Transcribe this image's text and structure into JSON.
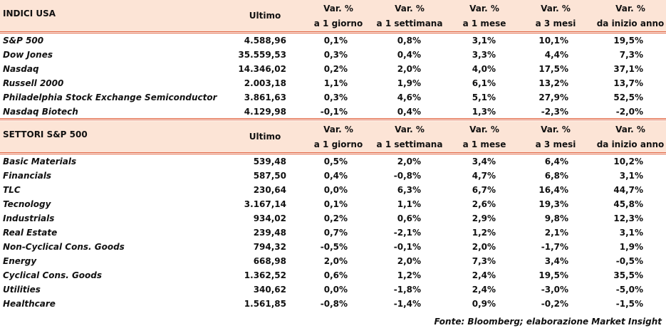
{
  "sections": [
    {
      "title": "INDICI USA",
      "columns": [
        [
          "Ultimo"
        ],
        [
          "Var. %",
          "a 1 giorno"
        ],
        [
          "Var. %",
          "a 1 settimana"
        ],
        [
          "Var. %",
          "a 1 mese"
        ],
        [
          "Var. %",
          "a 3 mesi"
        ],
        [
          "Var. %",
          "da inizio anno"
        ]
      ],
      "rows": [
        [
          "S&P 500",
          "4.588,96",
          "0,1%",
          "0,8%",
          "3,1%",
          "10,1%",
          "19,5%"
        ],
        [
          "Dow Jones",
          "35.559,53",
          "0,3%",
          "0,4%",
          "3,3%",
          "4,4%",
          "7,3%"
        ],
        [
          "Nasdaq",
          "14.346,02",
          "0,2%",
          "2,0%",
          "4,0%",
          "17,5%",
          "37,1%"
        ],
        [
          "Russell 2000",
          "2.003,18",
          "1,1%",
          "1,9%",
          "6,1%",
          "13,2%",
          "13,7%"
        ],
        [
          "Philadelphia Stock Exchange Semiconductor",
          "3.861,63",
          "0,3%",
          "4,6%",
          "5,1%",
          "27,9%",
          "52,5%"
        ],
        [
          "Nasdaq Biotech",
          "4.129,98",
          "-0,1%",
          "0,4%",
          "1,3%",
          "-2,3%",
          "-2,0%"
        ]
      ]
    },
    {
      "title": "SETTORI S&P 500",
      "columns": [
        [
          "Ultimo"
        ],
        [
          "Var. %",
          "a 1 giorno"
        ],
        [
          "Var. %",
          "a 1 settimana"
        ],
        [
          "Var. %",
          "a 1 mese"
        ],
        [
          "Var. %",
          "a 3 mesi"
        ],
        [
          "Var. %",
          "da inizio anno"
        ]
      ],
      "rows": [
        [
          "Basic Materials",
          "539,48",
          "0,5%",
          "2,0%",
          "3,4%",
          "6,4%",
          "10,2%"
        ],
        [
          "Financials",
          "587,50",
          "0,4%",
          "-0,8%",
          "4,7%",
          "6,8%",
          "3,1%"
        ],
        [
          "TLC",
          "230,64",
          "0,0%",
          "6,3%",
          "6,7%",
          "16,4%",
          "44,7%"
        ],
        [
          "Tecnology",
          "3.167,14",
          "0,1%",
          "1,1%",
          "2,6%",
          "19,3%",
          "45,8%"
        ],
        [
          "Industrials",
          "934,02",
          "0,2%",
          "0,6%",
          "2,9%",
          "9,8%",
          "12,3%"
        ],
        [
          "Real Estate",
          "239,48",
          "0,7%",
          "-2,1%",
          "1,2%",
          "2,1%",
          "3,1%"
        ],
        [
          "Non-Cyclical Cons. Goods",
          "794,32",
          "-0,5%",
          "-0,1%",
          "2,0%",
          "-1,7%",
          "1,9%"
        ],
        [
          "Energy",
          "668,98",
          "2,0%",
          "2,0%",
          "7,3%",
          "3,4%",
          "-0,5%"
        ],
        [
          "Cyclical Cons. Goods",
          "1.362,52",
          "0,6%",
          "1,2%",
          "2,4%",
          "19,5%",
          "35,5%"
        ],
        [
          "Utilities",
          "340,62",
          "0,0%",
          "-1,8%",
          "2,4%",
          "-3,0%",
          "-5,0%"
        ],
        [
          "Healthcare",
          "1.561,85",
          "-0,8%",
          "-1,4%",
          "0,9%",
          "-0,2%",
          "-1,5%"
        ]
      ]
    }
  ],
  "footer": "Fonte: Bloomberg; elaborazione Market Insight"
}
